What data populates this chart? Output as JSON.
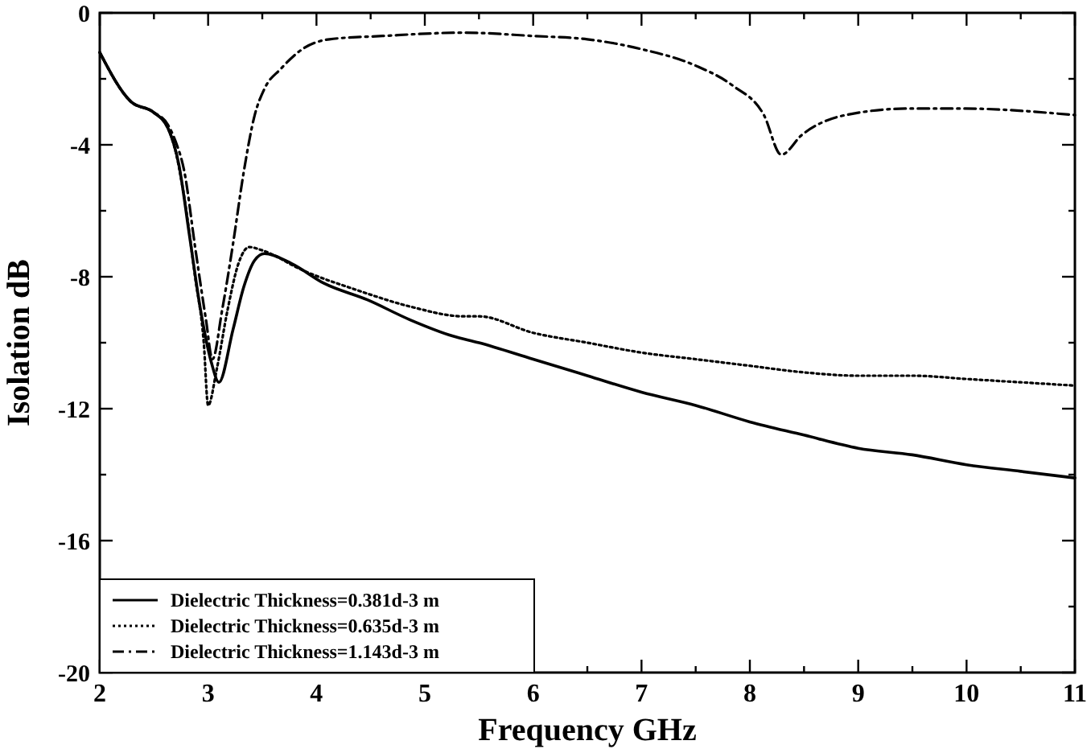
{
  "chart_data": {
    "type": "line",
    "xlabel": "Frequency GHz",
    "ylabel": "Isolation dB",
    "xlim": [
      2,
      11
    ],
    "ylim": [
      -20,
      0
    ],
    "xticks": [
      2,
      {
        "value": 2.5,
        "label": null
      },
      3,
      {
        "value": 3.5,
        "label": null
      },
      4,
      {
        "value": 4.5,
        "label": null
      },
      5,
      {
        "value": 5.5,
        "label": null
      },
      6,
      {
        "value": 6.5,
        "label": null
      },
      7,
      {
        "value": 7.5,
        "label": null
      },
      8,
      {
        "value": 8.5,
        "label": null
      },
      9,
      {
        "value": 9.5,
        "label": null
      },
      10,
      {
        "value": 10.5,
        "label": null
      },
      11
    ],
    "yticks": [
      -20,
      {
        "value": -18,
        "label": null
      },
      -16,
      {
        "value": -14,
        "label": null
      },
      -12,
      {
        "value": -10,
        "label": null
      },
      -8,
      {
        "value": -6,
        "label": null
      },
      -4,
      {
        "value": -2,
        "label": null
      },
      0
    ],
    "grid": false,
    "legend": "bottom left",
    "marker": "none",
    "series": [
      {
        "name": "Dielectric Thickness=0.381d-3 m",
        "color": "#000000",
        "line_style": "solid",
        "x": [
          2,
          2.29,
          2.49,
          2.63,
          2.73,
          2.83,
          2.93,
          3.03,
          3.1,
          3.23,
          3.33,
          3.43,
          3.52,
          3.77,
          4.07,
          4.47,
          4.86,
          5.26,
          5.5,
          6,
          6.5,
          7,
          7.5,
          8,
          8.5,
          9,
          9.5,
          10,
          10.5,
          11
        ],
        "values": [
          -1.2,
          -2.7,
          -3,
          -3.5,
          -4.6,
          -6.8,
          -9,
          -10.6,
          -11.2,
          -9.6,
          -8.3,
          -7.5,
          -7.3,
          -7.6,
          -8.2,
          -8.7,
          -9.3,
          -9.8,
          -10,
          -10.5,
          -11,
          -11.5,
          -11.9,
          -12.4,
          -12.8,
          -13.2,
          -13.4,
          -13.7,
          -13.9,
          -14.1
        ]
      },
      {
        "name": "Dielectric Thickness=0.635d-3 m",
        "color": "#000000",
        "line_style": "dotted",
        "x": [
          2,
          2.29,
          2.49,
          2.63,
          2.7,
          2.78,
          2.88,
          2.96,
          3,
          3.08,
          3.18,
          3.28,
          3.38,
          3.5,
          3.87,
          4.37,
          4.86,
          5.36,
          5.5,
          6,
          6.5,
          7,
          7.5,
          8,
          8.5,
          9,
          9.5,
          10,
          10.5,
          11
        ],
        "values": [
          -1.2,
          -2.7,
          -3,
          -3.5,
          -4.2,
          -5.6,
          -8,
          -10,
          -11.9,
          -10.8,
          -9,
          -7.6,
          -7.1,
          -7.2,
          -7.8,
          -8.4,
          -8.9,
          -9.2,
          -9.2,
          -9.7,
          -10,
          -10.3,
          -10.5,
          -10.7,
          -10.9,
          -11,
          -11,
          -11.1,
          -11.2,
          -11.3
        ]
      },
      {
        "name": "Dielectric Thickness=1.143d-3 m",
        "color": "#000000",
        "line_style": "dashdot",
        "x": [
          2,
          2.29,
          2.49,
          2.63,
          2.7,
          2.78,
          2.88,
          2.98,
          3.04,
          3.13,
          3.23,
          3.33,
          3.43,
          3.52,
          3.67,
          3.87,
          4.12,
          4.61,
          5.36,
          6,
          6.5,
          7,
          7.5,
          7.84,
          8.13,
          8.29,
          8.48,
          8.88,
          9.47,
          9.96,
          11
        ],
        "values": [
          -1.2,
          -2.7,
          -3,
          -3.4,
          -3.9,
          -4.8,
          -7.1,
          -9.3,
          -10.5,
          -9,
          -7,
          -4.8,
          -3.1,
          -2.3,
          -1.7,
          -1.1,
          -0.8,
          -0.7,
          -0.6,
          -0.7,
          -0.8,
          -1.1,
          -1.6,
          -2.2,
          -3.1,
          -4.3,
          -3.7,
          -3.1,
          -2.9,
          -2.9,
          -3.1
        ]
      }
    ]
  }
}
